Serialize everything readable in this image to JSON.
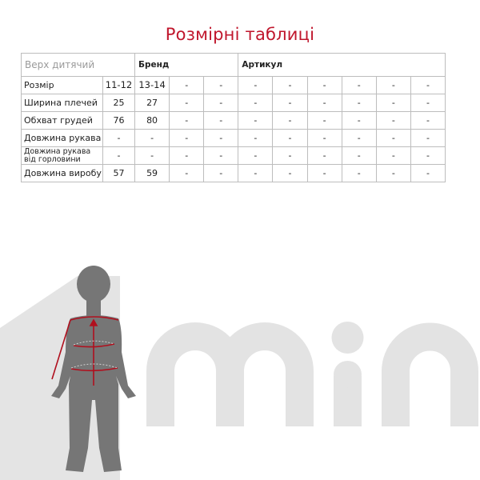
{
  "title": "Розмірні таблиці",
  "table": {
    "category": "Верх дитячий",
    "brand_label": "Бренд",
    "article_label": "Артикул",
    "rows": [
      {
        "label": "Розмір",
        "values": [
          "11-12",
          "13-14",
          "-",
          "-",
          "-",
          "-",
          "-",
          "-",
          "-",
          "-"
        ]
      },
      {
        "label": "Ширина плечей",
        "values": [
          "25",
          "27",
          "-",
          "-",
          "-",
          "-",
          "-",
          "-",
          "-",
          "-"
        ]
      },
      {
        "label": "Обхват грудей",
        "values": [
          "76",
          "80",
          "-",
          "-",
          "-",
          "-",
          "-",
          "-",
          "-",
          "-"
        ]
      },
      {
        "label": "Довжина рукава",
        "values": [
          "-",
          "-",
          "-",
          "-",
          "-",
          "-",
          "-",
          "-",
          "-",
          "-"
        ]
      },
      {
        "label": "Довжина рукава від горловини",
        "values": [
          "-",
          "-",
          "-",
          "-",
          "-",
          "-",
          "-",
          "-",
          "-",
          "-"
        ]
      },
      {
        "label": "Довжина виробу",
        "values": [
          "57",
          "59",
          "-",
          "-",
          "-",
          "-",
          "-",
          "-",
          "-",
          "-"
        ]
      }
    ]
  },
  "logo_text": "min",
  "colors": {
    "accent": "#c0162c",
    "silhouette": "#767676",
    "logo": "#e3e3e3"
  }
}
